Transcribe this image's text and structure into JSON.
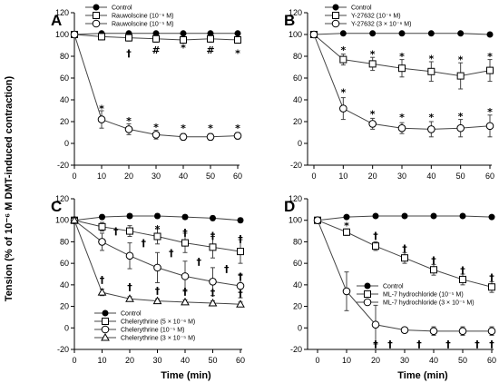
{
  "figure": {
    "ylabel": "Tension (% of 10⁻⁶ M DMT-induced contraction)",
    "xlabel": "Time (min)"
  },
  "chart_data": [
    {
      "panel": "A",
      "type": "line",
      "x": [
        0,
        10,
        20,
        30,
        40,
        50,
        60
      ],
      "xlim": [
        -5,
        60
      ],
      "ylim": [
        -20,
        120
      ],
      "xticks": [
        0,
        10,
        20,
        30,
        40,
        50,
        60
      ],
      "yticks": [
        -20,
        0,
        20,
        40,
        60,
        80,
        100,
        120
      ],
      "legend_position": "top",
      "series": [
        {
          "name": "Control",
          "marker": "filled-circle",
          "values": [
            100,
            101,
            101,
            101,
            101,
            101,
            101
          ],
          "errors": [
            1,
            1,
            1,
            1,
            1,
            1,
            1
          ]
        },
        {
          "name": "Rauwolscine (10⁻⁶ M)",
          "marker": "open-square",
          "values": [
            100,
            98,
            97,
            96,
            95,
            96,
            95
          ],
          "errors": [
            2,
            3,
            3,
            3,
            3,
            3,
            3
          ]
        },
        {
          "name": "Rauwolscine (10⁻⁵ M)",
          "marker": "open-circle",
          "values": [
            100,
            22,
            13,
            8,
            6,
            6,
            7
          ],
          "errors": [
            2,
            8,
            5,
            4,
            3,
            3,
            3
          ]
        }
      ],
      "annotations": [
        {
          "x": 10,
          "y": 32,
          "text": "*"
        },
        {
          "x": 20,
          "y": 21,
          "text": "*"
        },
        {
          "x": 30,
          "y": 15,
          "text": "*"
        },
        {
          "x": 40,
          "y": 14,
          "text": "*"
        },
        {
          "x": 50,
          "y": 14,
          "text": "*"
        },
        {
          "x": 60,
          "y": 14,
          "text": "*"
        },
        {
          "x": 20,
          "y": 83,
          "text": "†"
        },
        {
          "x": 30,
          "y": 86,
          "text": "#"
        },
        {
          "x": 40,
          "y": 88,
          "text": "*"
        },
        {
          "x": 50,
          "y": 86,
          "text": "#"
        },
        {
          "x": 60,
          "y": 83,
          "text": "*"
        }
      ]
    },
    {
      "panel": "B",
      "type": "line",
      "x": [
        0,
        10,
        20,
        30,
        40,
        50,
        60
      ],
      "xlim": [
        -5,
        60
      ],
      "ylim": [
        -20,
        120
      ],
      "xticks": [
        0,
        10,
        20,
        30,
        40,
        50,
        60
      ],
      "yticks": [
        -20,
        0,
        20,
        40,
        60,
        80,
        100,
        120
      ],
      "legend_position": "top",
      "series": [
        {
          "name": "Control",
          "marker": "filled-circle",
          "values": [
            100,
            101,
            101,
            101,
            101,
            101,
            100
          ],
          "errors": [
            1,
            1,
            1,
            1,
            1,
            1,
            1
          ]
        },
        {
          "name": "Y-27632 (10⁻⁶ M)",
          "marker": "open-square",
          "values": [
            100,
            77,
            73,
            69,
            66,
            62,
            67
          ],
          "errors": [
            2,
            5,
            6,
            8,
            9,
            12,
            10
          ]
        },
        {
          "name": "Y-27632 (3 × 10⁻⁶ M)",
          "marker": "open-circle",
          "values": [
            100,
            32,
            18,
            14,
            13,
            14,
            16
          ],
          "errors": [
            2,
            10,
            5,
            5,
            7,
            8,
            10
          ]
        }
      ],
      "annotations": [
        {
          "x": 10,
          "y": 86,
          "text": "*"
        },
        {
          "x": 20,
          "y": 82,
          "text": "*"
        },
        {
          "x": 30,
          "y": 80,
          "text": "*"
        },
        {
          "x": 40,
          "y": 78,
          "text": "*"
        },
        {
          "x": 50,
          "y": 77,
          "text": "*"
        },
        {
          "x": 60,
          "y": 80,
          "text": "*"
        },
        {
          "x": 10,
          "y": 47,
          "text": "*"
        },
        {
          "x": 20,
          "y": 27,
          "text": "*"
        },
        {
          "x": 30,
          "y": 24,
          "text": "*"
        },
        {
          "x": 40,
          "y": 24,
          "text": "*"
        },
        {
          "x": 50,
          "y": 25,
          "text": "*"
        },
        {
          "x": 60,
          "y": 29,
          "text": "*"
        }
      ]
    },
    {
      "panel": "C",
      "type": "line",
      "x": [
        0,
        10,
        20,
        30,
        40,
        50,
        60
      ],
      "xlim": [
        -5,
        60
      ],
      "ylim": [
        -20,
        120
      ],
      "xticks": [
        0,
        10,
        20,
        30,
        40,
        50,
        60
      ],
      "yticks": [
        -20,
        0,
        20,
        40,
        60,
        80,
        100,
        120
      ],
      "legend_position": "bottom-left",
      "series": [
        {
          "name": "Control",
          "marker": "filled-circle",
          "values": [
            100,
            103,
            104,
            104,
            103,
            102,
            100
          ],
          "errors": [
            1,
            2,
            2,
            2,
            2,
            2,
            2
          ]
        },
        {
          "name": "Chelerythrine (5 × 10⁻⁶ M)",
          "marker": "open-square",
          "values": [
            100,
            94,
            90,
            85,
            79,
            75,
            71
          ],
          "errors": [
            2,
            4,
            5,
            7,
            9,
            10,
            11
          ]
        },
        {
          "name": "Chelerythrine (10⁻⁵ M)",
          "marker": "open-circle",
          "values": [
            100,
            80,
            67,
            56,
            48,
            43,
            39
          ],
          "errors": [
            2,
            8,
            12,
            14,
            14,
            13,
            11
          ]
        },
        {
          "name": "Chelerythrine (3 × 10⁻⁵ M)",
          "marker": "open-triangle",
          "values": [
            100,
            33,
            27,
            25,
            24,
            23,
            22
          ],
          "errors": [
            2,
            3,
            2,
            2,
            2,
            2,
            2
          ]
        }
      ],
      "annotations": [
        {
          "x": 20,
          "y": 103,
          "text": "*"
        },
        {
          "x": 30,
          "y": 92,
          "text": "*"
        },
        {
          "x": 40,
          "y": 89,
          "text": "†"
        },
        {
          "x": 50,
          "y": 86,
          "text": "†"
        },
        {
          "x": 60,
          "y": 83,
          "text": "†"
        },
        {
          "x": 15,
          "y": 90,
          "text": "†"
        },
        {
          "x": 25,
          "y": 79,
          "text": "†"
        },
        {
          "x": 35,
          "y": 70,
          "text": "†"
        },
        {
          "x": 45,
          "y": 62,
          "text": "†"
        },
        {
          "x": 55,
          "y": 55,
          "text": "†"
        },
        {
          "x": 60,
          "y": 48,
          "text": "†"
        },
        {
          "x": 10,
          "y": 45,
          "text": "†"
        },
        {
          "x": 20,
          "y": 38,
          "text": "†"
        },
        {
          "x": 30,
          "y": 35,
          "text": "†"
        },
        {
          "x": 40,
          "y": 34,
          "text": "†"
        },
        {
          "x": 50,
          "y": 33,
          "text": "†"
        },
        {
          "x": 60,
          "y": 32,
          "text": "†"
        }
      ]
    },
    {
      "panel": "D",
      "type": "line",
      "x": [
        0,
        10,
        20,
        30,
        40,
        50,
        60
      ],
      "xlim": [
        -5,
        60
      ],
      "ylim": [
        -20,
        120
      ],
      "xticks": [
        0,
        10,
        20,
        30,
        40,
        50,
        60
      ],
      "yticks": [
        -20,
        0,
        20,
        40,
        60,
        80,
        100,
        120
      ],
      "legend_position": "center-right",
      "series": [
        {
          "name": "Control",
          "marker": "filled-circle",
          "values": [
            100,
            103,
            104,
            104,
            104,
            104,
            103
          ],
          "errors": [
            1,
            1,
            1,
            1,
            1,
            1,
            1
          ]
        },
        {
          "name": "ML-7 hydrochloride (10⁻⁵ M)",
          "marker": "open-square",
          "values": [
            100,
            89,
            76,
            65,
            54,
            45,
            38
          ],
          "errors": [
            2,
            3,
            4,
            5,
            5,
            5,
            5
          ]
        },
        {
          "name": "ML-7 hydrochloride (3 × 10⁻⁵ M)",
          "marker": "open-circle",
          "values": [
            100,
            34,
            3,
            -2,
            -3,
            -3,
            -3
          ],
          "errors": [
            2,
            18,
            18,
            2,
            4,
            4,
            4
          ]
        }
      ],
      "annotations": [
        {
          "x": 10,
          "y": 95,
          "text": "*"
        },
        {
          "x": 20,
          "y": 86,
          "text": "†"
        },
        {
          "x": 30,
          "y": 74,
          "text": "†"
        },
        {
          "x": 40,
          "y": 63,
          "text": "†"
        },
        {
          "x": 50,
          "y": 54,
          "text": "†"
        },
        {
          "x": 60,
          "y": 47,
          "text": "†"
        },
        {
          "x": 20,
          "y": -15,
          "text": "†"
        },
        {
          "x": 25,
          "y": -15,
          "text": "†"
        },
        {
          "x": 35,
          "y": -15,
          "text": "†"
        },
        {
          "x": 45,
          "y": -15,
          "text": "†"
        },
        {
          "x": 55,
          "y": -15,
          "text": "†"
        },
        {
          "x": 60,
          "y": -15,
          "text": "†"
        }
      ]
    }
  ]
}
